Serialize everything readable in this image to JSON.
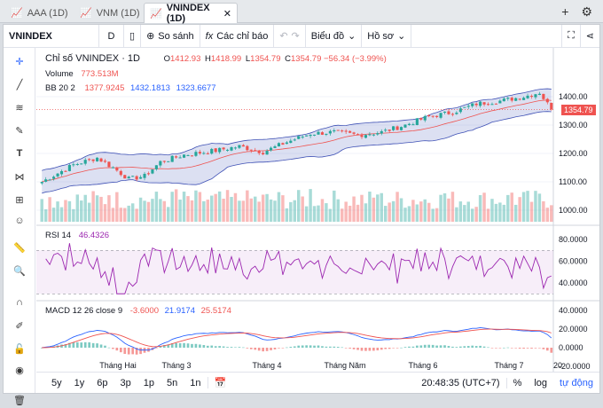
{
  "tabs": [
    {
      "label": "AAA (1D)",
      "active": false
    },
    {
      "label": "VNM (1D)",
      "active": false
    },
    {
      "label": "VNINDEX (1D)",
      "active": true
    }
  ],
  "toolbar": {
    "symbol": "VNINDEX",
    "interval": "D",
    "compare_label": "So sánh",
    "indicators_label": "Các chỉ báo",
    "chart_type_label": "Biểu đồ",
    "profile_label": "Hồ sơ"
  },
  "legend": {
    "title": "Chỉ số VNINDEX · 1D",
    "o_label": "O",
    "o": "1412.93",
    "h_label": "H",
    "h": "1418.99",
    "l_label": "L",
    "l": "1354.79",
    "c_label": "C",
    "c": "1354.79",
    "change": "−56.34 (−3.99%)",
    "volume_label": "Volume",
    "volume": "773.513M",
    "bb_label": "BB 20 2",
    "bb_mid": "1377.9245",
    "bb_up": "1432.1813",
    "bb_low": "1323.6677",
    "rsi_label": "RSI 14",
    "rsi": "46.4326",
    "macd_label": "MACD 12 26 close 9",
    "macd_hist": "-3.6000",
    "macd_line": "21.9174",
    "macd_signal": "25.5174"
  },
  "price_axis": [
    "1400.00",
    "1300.00",
    "1200.00",
    "1100.00",
    "1000.00"
  ],
  "last_price": "1354.79",
  "rsi_axis": [
    "80.0000",
    "60.0000",
    "40.0000"
  ],
  "macd_axis": [
    "40.0000",
    "20.0000",
    "0.0000",
    "-20.0000"
  ],
  "time_axis": [
    "Tháng Hai",
    "Tháng 3",
    "Tháng 4",
    "Tháng Năm",
    "Tháng 6",
    "Tháng 7",
    "20"
  ],
  "bottom": {
    "ranges": [
      "5y",
      "1y",
      "6p",
      "3p",
      "1p",
      "5n",
      "1n"
    ],
    "clock": "20:48:35 (UTC+7)",
    "pct": "%",
    "log": "log",
    "auto": "tự động"
  },
  "colors": {
    "up": "#26a69a",
    "down": "#ef5350",
    "bb": "#3f51b5",
    "rsi": "#9c27b0",
    "macd": "#2962ff",
    "signal": "#ef5350"
  }
}
